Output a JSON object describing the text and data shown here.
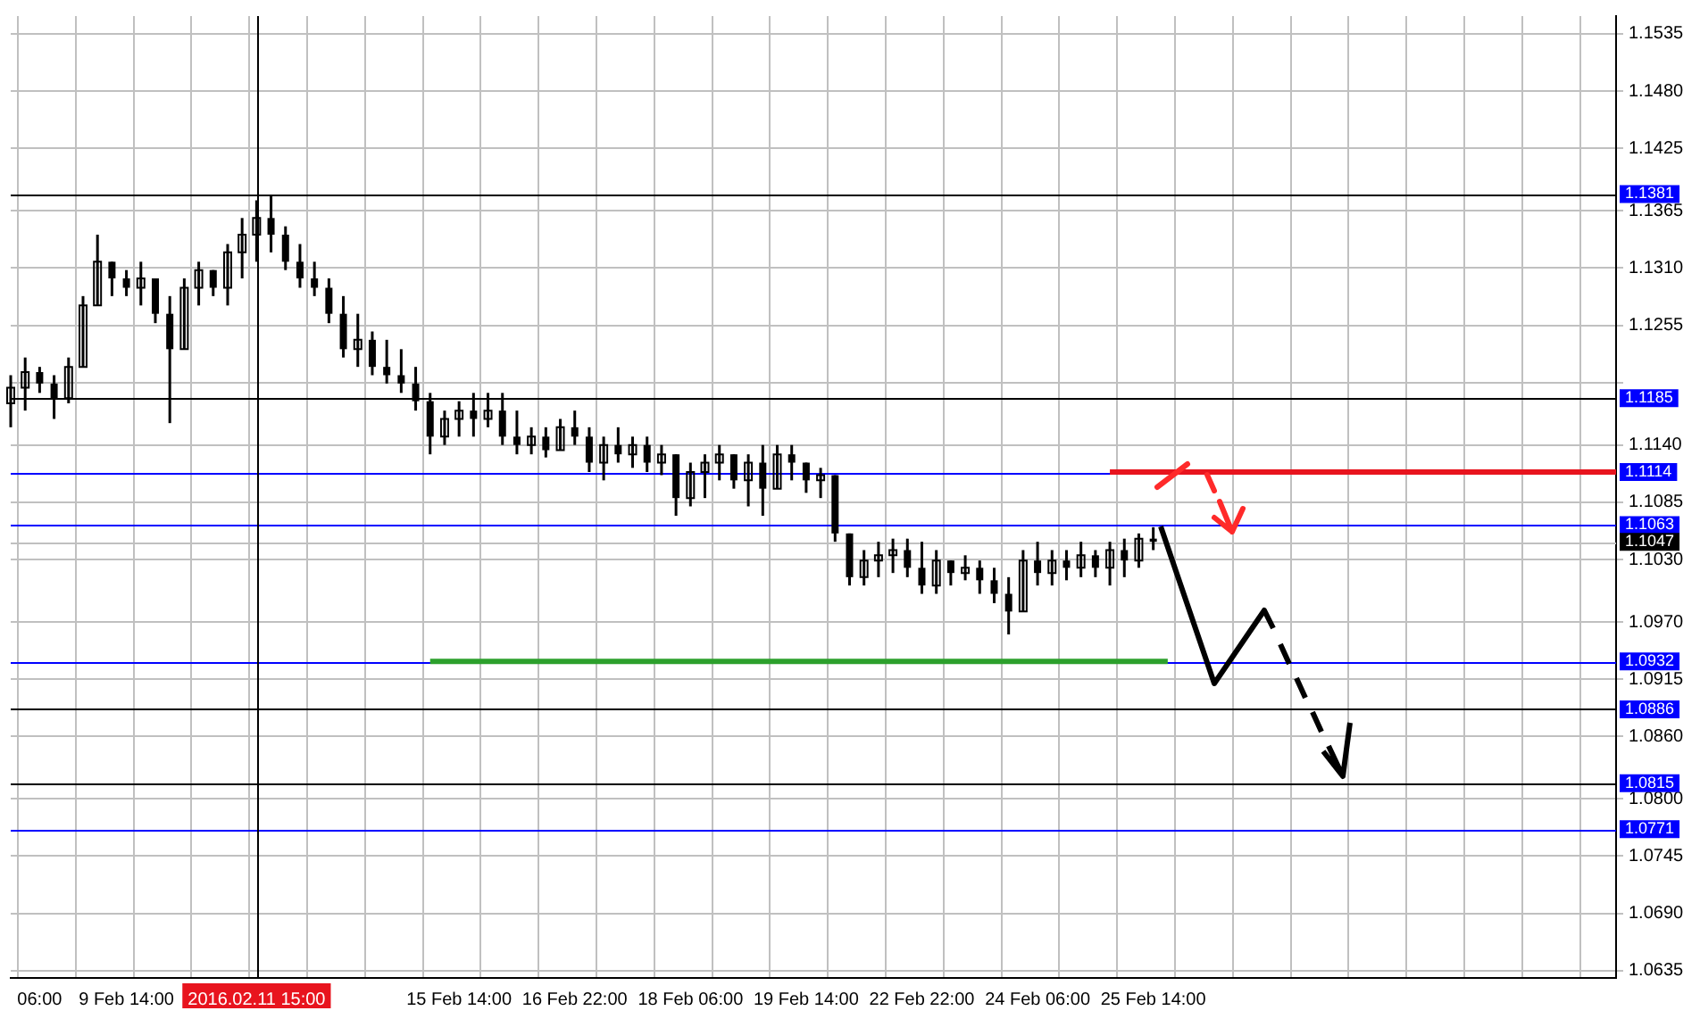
{
  "chart_data": {
    "type": "candlestick",
    "color": "#000000",
    "grid": true,
    "series": [
      {
        "type": "line",
        "color": "#2ca02c",
        "values": [
          null,
          null,
          null,
          null,
          null,
          null,
          null,
          null,
          null,
          null,
          null,
          null,
          null,
          null,
          null,
          null,
          null,
          null,
          null,
          null,
          null,
          null,
          null,
          null,
          null,
          null,
          null,
          null,
          null,
          1.0932,
          1.0932,
          1.0932,
          1.0932,
          1.0932,
          1.0932,
          1.0932,
          1.0932,
          1.0932,
          1.0932,
          1.0932,
          1.0932,
          1.0932,
          1.0932,
          1.0932,
          1.0932,
          1.0932,
          1.0932,
          1.0932,
          1.0932,
          1.0932,
          1.0932,
          1.0932,
          1.0932,
          1.0932,
          1.0932,
          1.0932,
          1.0932,
          1.0932,
          1.0932,
          1.0932,
          1.0932,
          1.0932,
          1.0932,
          1.0932,
          1.0932,
          1.0932,
          1.0932,
          1.0932,
          1.0932,
          1.0932,
          1.0932,
          1.0932,
          1.0932,
          1.0932,
          1.0932,
          1.0932,
          1.0932,
          1.0932,
          1.0932,
          1.0932,
          1.0932,
          null,
          null,
          null,
          null,
          null,
          null,
          null,
          null,
          null,
          null,
          null,
          null,
          null,
          null,
          null,
          null,
          null,
          null,
          null,
          null,
          null,
          null,
          null,
          null,
          null,
          null,
          null,
          null,
          null,
          null,
          null
        ]
      },
      {
        "type": "line",
        "color": "#e8141e",
        "values": [
          null,
          null,
          null,
          null,
          null,
          null,
          null,
          null,
          null,
          null,
          null,
          null,
          null,
          null,
          null,
          null,
          null,
          null,
          null,
          null,
          null,
          null,
          null,
          null,
          null,
          null,
          null,
          null,
          null,
          null,
          null,
          null,
          null,
          null,
          null,
          null,
          null,
          null,
          null,
          null,
          null,
          null,
          null,
          null,
          null,
          null,
          null,
          null,
          null,
          null,
          null,
          null,
          null,
          null,
          null,
          null,
          null,
          null,
          null,
          null,
          null,
          null,
          null,
          null,
          null,
          null,
          null,
          null,
          null,
          null,
          null,
          null,
          null,
          null,
          null,
          null,
          1.1114,
          1.1114,
          1.1114,
          1.1114,
          1.1114,
          1.1114,
          1.1114,
          1.1114,
          1.1114,
          1.1114,
          1.1114,
          1.1114,
          1.1114,
          1.1114,
          1.1114,
          1.1114,
          1.1114,
          1.1114,
          1.1114,
          1.1114,
          1.1114,
          1.1114,
          1.1114,
          1.1114,
          1.1114,
          1.1114,
          1.1114,
          1.1114,
          1.1114,
          1.1114,
          1.1114,
          1.1114,
          1.1114,
          1.1114,
          1.1114,
          1.1114
        ]
      }
    ],
    "categories": [
      null,
      null,
      "06:00",
      null,
      null,
      null,
      null,
      null,
      "9 Feb 14:00",
      null,
      null,
      null,
      null,
      null,
      null,
      null,
      null,
      "2016.02.11 15:00",
      null,
      null,
      null,
      null,
      null,
      null,
      null,
      null,
      null,
      null,
      null,
      null,
      null,
      "15 Feb 14:00",
      null,
      null,
      null,
      null,
      null,
      null,
      null,
      "16 Feb 22:00",
      null,
      null,
      null,
      null,
      null,
      null,
      null,
      "18 Feb 06:00",
      null,
      null,
      null,
      null,
      null,
      null,
      null,
      "19 Feb 14:00",
      null,
      null,
      null,
      null,
      null,
      null,
      null,
      "22 Feb 22:00",
      null,
      null,
      null,
      null,
      null,
      null,
      null,
      "24 Feb 06:00",
      null,
      null,
      null,
      null,
      null,
      null,
      null,
      "25 Feb 14:00",
      null,
      null,
      null,
      null,
      null,
      null,
      null,
      null,
      null,
      null,
      null,
      null,
      null,
      null,
      null,
      null,
      null,
      null,
      null,
      null,
      null,
      null,
      null,
      null,
      null,
      null,
      null,
      null,
      null,
      null,
      null,
      null
    ],
    "ohlc": [
      [
        1.118,
        1.1207,
        1.1157,
        1.1195
      ],
      [
        1.1195,
        1.1224,
        1.1173,
        1.121
      ],
      [
        1.121,
        1.1215,
        1.119,
        1.1199
      ],
      [
        1.1199,
        1.1207,
        1.1165,
        1.1185
      ],
      [
        1.1185,
        1.1224,
        1.118,
        1.1215
      ],
      [
        1.1215,
        1.1283,
        1.1215,
        1.1274
      ],
      [
        1.1274,
        1.1342,
        1.1274,
        1.1316
      ],
      [
        1.1316,
        1.1316,
        1.1283,
        1.13
      ],
      [
        1.13,
        1.1308,
        1.1283,
        1.1291
      ],
      [
        1.1291,
        1.1316,
        1.1274,
        1.13
      ],
      [
        1.13,
        1.13,
        1.1257,
        1.1266
      ],
      [
        1.1266,
        1.1283,
        1.1161,
        1.1232
      ],
      [
        1.1232,
        1.13,
        1.1232,
        1.1291
      ],
      [
        1.1291,
        1.1316,
        1.1274,
        1.1308
      ],
      [
        1.1308,
        1.1308,
        1.1283,
        1.1291
      ],
      [
        1.1291,
        1.1333,
        1.1274,
        1.1325
      ],
      [
        1.1325,
        1.1358,
        1.13,
        1.1342
      ],
      [
        1.1342,
        1.1375,
        1.1316,
        1.1358
      ],
      [
        1.1358,
        1.1379,
        1.1325,
        1.1342
      ],
      [
        1.1342,
        1.135,
        1.1308,
        1.1316
      ],
      [
        1.1316,
        1.1333,
        1.1291,
        1.13
      ],
      [
        1.13,
        1.1316,
        1.1283,
        1.1291
      ],
      [
        1.1291,
        1.13,
        1.1257,
        1.1266
      ],
      [
        1.1266,
        1.1283,
        1.1224,
        1.1232
      ],
      [
        1.1232,
        1.1266,
        1.1215,
        1.1241
      ],
      [
        1.1241,
        1.1249,
        1.1207,
        1.1215
      ],
      [
        1.1215,
        1.1241,
        1.1199,
        1.1207
      ],
      [
        1.1207,
        1.1232,
        1.119,
        1.1199
      ],
      [
        1.1199,
        1.1215,
        1.1173,
        1.1182
      ],
      [
        1.1182,
        1.119,
        1.1131,
        1.1148
      ],
      [
        1.1148,
        1.1173,
        1.114,
        1.1165
      ],
      [
        1.1165,
        1.1182,
        1.1148,
        1.1173
      ],
      [
        1.1173,
        1.119,
        1.1148,
        1.1165
      ],
      [
        1.1165,
        1.119,
        1.1157,
        1.1173
      ],
      [
        1.1173,
        1.119,
        1.114,
        1.1148
      ],
      [
        1.1148,
        1.1173,
        1.1131,
        1.114
      ],
      [
        1.114,
        1.1157,
        1.1131,
        1.1148
      ],
      [
        1.1148,
        1.1157,
        1.1128,
        1.1135
      ],
      [
        1.1135,
        1.1165,
        1.1135,
        1.1157
      ],
      [
        1.1157,
        1.1173,
        1.114,
        1.1148
      ],
      [
        1.1148,
        1.1157,
        1.1114,
        1.1123
      ],
      [
        1.1123,
        1.1148,
        1.1106,
        1.114
      ],
      [
        1.114,
        1.1157,
        1.1123,
        1.1131
      ],
      [
        1.1131,
        1.1148,
        1.1118,
        1.114
      ],
      [
        1.114,
        1.1148,
        1.1114,
        1.1123
      ],
      [
        1.1123,
        1.114,
        1.1111,
        1.1131
      ],
      [
        1.1131,
        1.1131,
        1.1072,
        1.1089
      ],
      [
        1.1089,
        1.1123,
        1.1081,
        1.1114
      ],
      [
        1.1114,
        1.1131,
        1.1089,
        1.1123
      ],
      [
        1.1123,
        1.114,
        1.1106,
        1.1131
      ],
      [
        1.1131,
        1.1131,
        1.1098,
        1.1106
      ],
      [
        1.1106,
        1.1131,
        1.1081,
        1.1123
      ],
      [
        1.1123,
        1.114,
        1.1072,
        1.1098
      ],
      [
        1.1098,
        1.114,
        1.1098,
        1.1131
      ],
      [
        1.1131,
        1.114,
        1.1106,
        1.1123
      ],
      [
        1.1123,
        1.1123,
        1.1094,
        1.1106
      ],
      [
        1.1106,
        1.1118,
        1.1089,
        1.1111
      ],
      [
        1.1111,
        1.1111,
        1.1047,
        1.1055
      ],
      [
        1.1055,
        1.1055,
        1.1005,
        1.1013
      ],
      [
        1.1013,
        1.1039,
        1.1005,
        1.1029
      ],
      [
        1.1029,
        1.1047,
        1.1013,
        1.1034
      ],
      [
        1.1034,
        1.105,
        1.1017,
        1.1039
      ],
      [
        1.1039,
        1.105,
        1.1013,
        1.1022
      ],
      [
        1.1022,
        1.1047,
        1.0997,
        1.1005
      ],
      [
        1.1005,
        1.1039,
        1.0997,
        1.1029
      ],
      [
        1.1029,
        1.1029,
        1.1005,
        1.1017
      ],
      [
        1.1017,
        1.1034,
        1.101,
        1.1022
      ],
      [
        1.1022,
        1.1029,
        1.0997,
        1.101
      ],
      [
        1.101,
        1.1022,
        1.0988,
        1.0997
      ],
      [
        1.0997,
        1.1013,
        1.0958,
        1.098
      ],
      [
        1.098,
        1.1039,
        1.098,
        1.1029
      ],
      [
        1.1029,
        1.1047,
        1.1005,
        1.1017
      ],
      [
        1.1017,
        1.1039,
        1.1005,
        1.1029
      ],
      [
        1.1029,
        1.1039,
        1.101,
        1.1022
      ],
      [
        1.1022,
        1.1047,
        1.1013,
        1.1034
      ],
      [
        1.1034,
        1.1039,
        1.1013,
        1.1022
      ],
      [
        1.1022,
        1.1047,
        1.1005,
        1.1039
      ],
      [
        1.1039,
        1.105,
        1.1013,
        1.1029
      ],
      [
        1.1029,
        1.1055,
        1.1022,
        1.105
      ],
      [
        1.105,
        1.1061,
        1.1039,
        1.1047
      ],
      null,
      null,
      null,
      null,
      null,
      null,
      null,
      null,
      null,
      null,
      null,
      null,
      null,
      null,
      null,
      null,
      null,
      null,
      null,
      null,
      null,
      null,
      null,
      null,
      null,
      null,
      null,
      null,
      null,
      null,
      null,
      null
    ],
    "ylim": [
      1.0628,
      1.1552
    ],
    "yticks": [
      {
        "value": 1.1535,
        "label": "1.1535"
      },
      {
        "value": 1.148,
        "label": "1.1480"
      },
      {
        "value": 1.1425,
        "label": "1.1425"
      },
      {
        "value": 1.1365,
        "label": "1.1365"
      },
      {
        "value": 1.131,
        "label": "1.1310"
      },
      {
        "value": 1.1255,
        "label": "1.1255"
      },
      {
        "value": 1.12,
        "label": null
      },
      {
        "value": 1.114,
        "label": "1.1140"
      },
      {
        "value": 1.1085,
        "label": "1.1085"
      },
      {
        "value": 1.103,
        "label": "1.1030"
      },
      {
        "value": 1.097,
        "label": "1.0970"
      },
      {
        "value": 1.0915,
        "label": "1.0915"
      },
      {
        "value": 1.086,
        "label": "1.0860"
      },
      {
        "value": 1.08,
        "label": "1.0800"
      },
      {
        "value": 1.0745,
        "label": "1.0745"
      },
      {
        "value": 1.069,
        "label": "1.0690"
      },
      {
        "value": 1.0635,
        "label": "1.0635"
      }
    ],
    "ref_lines": [
      {
        "axis": "x",
        "value": "2016.02.11 15:00",
        "color": "#000000"
      },
      {
        "axis": "y",
        "value": 1.1381,
        "label": "1.1381",
        "color": "#000000"
      },
      {
        "axis": "y",
        "value": 1.1185,
        "label": "1.1185",
        "color": "#000000"
      },
      {
        "axis": "y",
        "value": 1.1114,
        "label": "1.1114",
        "color": "#0000ff"
      },
      {
        "axis": "y",
        "value": 1.1063,
        "label": "1.1063",
        "color": "#0000ff"
      },
      {
        "axis": "y",
        "value": 1.1047,
        "label": "1.1047",
        "color": "#c0c0c0"
      },
      {
        "axis": "y",
        "value": 1.0932,
        "label": "1.0932",
        "color": "#0000ff"
      },
      {
        "axis": "y",
        "value": 1.0886,
        "label": "1.0886",
        "color": "#000000"
      },
      {
        "axis": "y",
        "value": 1.0815,
        "label": "1.0815",
        "color": "#000000"
      },
      {
        "axis": "y",
        "value": 1.0771,
        "label": "1.0771",
        "color": "#0000ff"
      }
    ]
  }
}
